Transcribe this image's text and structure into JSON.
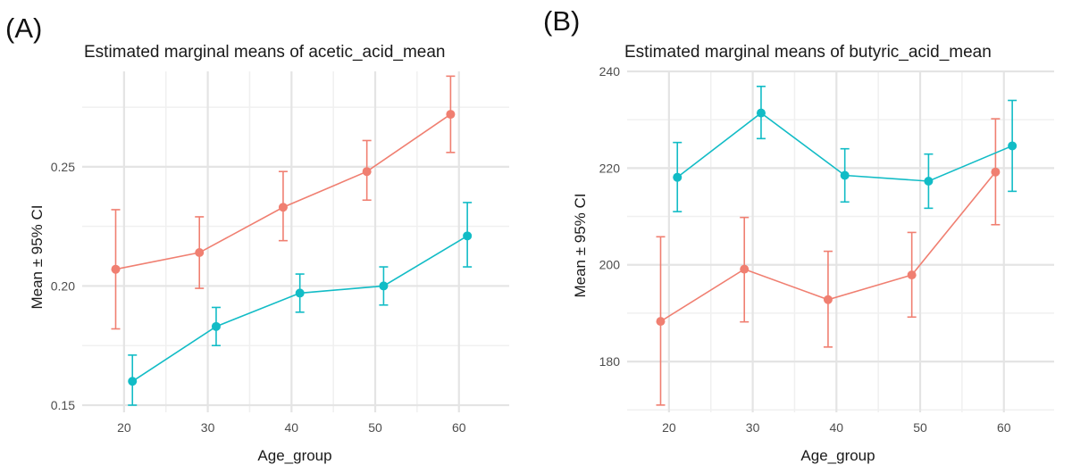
{
  "panels": [
    {
      "tag": "(A)",
      "title": "Estimated marginal means of acetic_acid_mean",
      "xlabel": "Age_group",
      "ylabel": "Mean ± 95% CI"
    },
    {
      "tag": "(B)",
      "title": "Estimated marginal means of butyric_acid_mean",
      "xlabel": "Age_group",
      "ylabel": "Mean ± 95% CI"
    }
  ],
  "chart_data": [
    {
      "type": "line",
      "title": "Estimated marginal means of acetic_acid_mean",
      "xlabel": "Age_group",
      "ylabel": "Mean ± 95% CI",
      "xlim": [
        15,
        66
      ],
      "ylim": [
        0.147,
        0.29
      ],
      "x_ticks": [
        20,
        30,
        40,
        50,
        60
      ],
      "x_tick_labels": [
        "20",
        "30",
        "40",
        "50",
        "60"
      ],
      "y_ticks": [
        0.15,
        0.2,
        0.25
      ],
      "y_tick_labels": [
        "0.15",
        "0.20",
        "0.25"
      ],
      "grid": true,
      "legend": "none",
      "series": [
        {
          "color": "#F07F71",
          "x": [
            19,
            29,
            39,
            49,
            59
          ],
          "y": [
            0.207,
            0.214,
            0.233,
            0.248,
            0.272
          ],
          "lower": [
            0.182,
            0.199,
            0.219,
            0.236,
            0.256
          ],
          "upper": [
            0.232,
            0.229,
            0.248,
            0.261,
            0.288
          ]
        },
        {
          "color": "#12BCC6",
          "x": [
            21,
            31,
            41,
            51,
            61
          ],
          "y": [
            0.16,
            0.183,
            0.197,
            0.2,
            0.221
          ],
          "lower": [
            0.15,
            0.175,
            0.189,
            0.192,
            0.208
          ],
          "upper": [
            0.171,
            0.191,
            0.205,
            0.208,
            0.235
          ]
        }
      ]
    },
    {
      "type": "line",
      "title": "Estimated marginal means of butyric_acid_mean",
      "xlabel": "Age_group",
      "ylabel": "Mean ± 95% CI",
      "xlim": [
        15,
        66
      ],
      "ylim": [
        169.5,
        240
      ],
      "x_ticks": [
        20,
        30,
        40,
        50,
        60
      ],
      "x_tick_labels": [
        "20",
        "30",
        "40",
        "50",
        "60"
      ],
      "y_ticks": [
        180,
        200,
        220,
        240
      ],
      "y_tick_labels": [
        "180",
        "200",
        "220",
        "240"
      ],
      "grid": true,
      "legend": "none",
      "series": [
        {
          "color": "#F07F71",
          "x": [
            19,
            29,
            39,
            49,
            59
          ],
          "y": [
            188.3,
            199.1,
            192.8,
            197.9,
            219.2
          ],
          "lower": [
            171.0,
            188.2,
            183.0,
            189.2,
            208.3
          ],
          "upper": [
            205.8,
            209.8,
            202.8,
            206.7,
            230.2
          ]
        },
        {
          "color": "#12BCC6",
          "x": [
            21,
            31,
            41,
            51,
            61
          ],
          "y": [
            218.1,
            231.4,
            218.5,
            217.3,
            224.6
          ],
          "lower": [
            211.0,
            226.1,
            213.0,
            211.7,
            215.2
          ],
          "upper": [
            225.3,
            236.9,
            224.0,
            222.9,
            234.0
          ]
        }
      ]
    }
  ]
}
